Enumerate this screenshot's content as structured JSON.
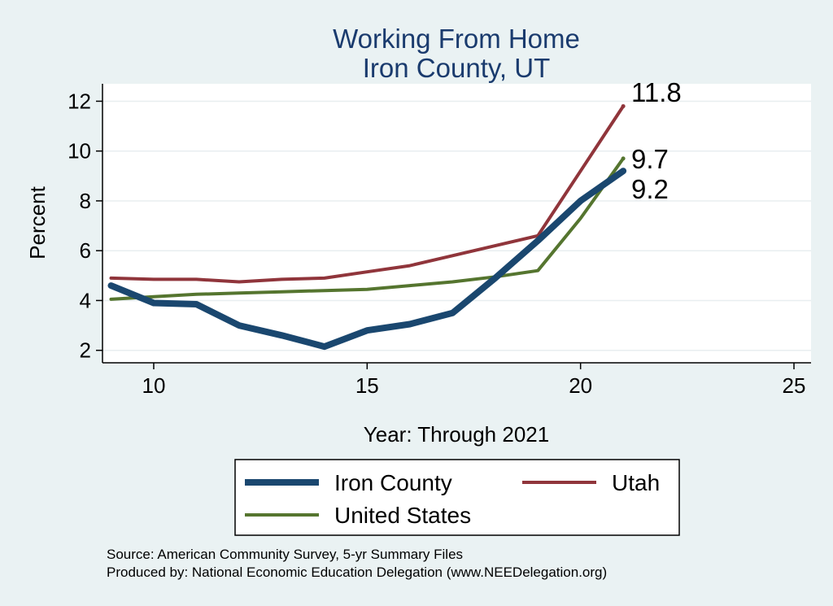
{
  "chart_data": {
    "type": "line",
    "title": "Working From Home",
    "subtitle": "Iron County, UT",
    "xlabel": "Year: Through 2021",
    "ylabel": "Percent",
    "xlim": [
      8.8,
      25.4
    ],
    "ylim": [
      1.5,
      12.7
    ],
    "xticks": [
      10,
      15,
      20,
      25
    ],
    "yticks": [
      2,
      4,
      6,
      8,
      10,
      12
    ],
    "grid": "horizontal",
    "legend_position": "bottom",
    "series": [
      {
        "name": "Iron County",
        "color": "#1a476f",
        "x": [
          9,
          10,
          11,
          12,
          13,
          14,
          15,
          16,
          17,
          18,
          19,
          20,
          21
        ],
        "y": [
          4.6,
          3.9,
          3.85,
          3.0,
          2.6,
          2.15,
          2.8,
          3.05,
          3.5,
          4.9,
          6.4,
          8.0,
          9.2
        ]
      },
      {
        "name": "Utah",
        "color": "#90353b",
        "x": [
          9,
          10,
          11,
          12,
          13,
          14,
          15,
          16,
          17,
          18,
          19,
          20,
          21
        ],
        "y": [
          4.9,
          4.85,
          4.85,
          4.75,
          4.85,
          4.9,
          5.15,
          5.4,
          5.8,
          6.2,
          6.6,
          9.2,
          11.8
        ]
      },
      {
        "name": "United States",
        "color": "#55752f",
        "x": [
          9,
          10,
          11,
          12,
          13,
          14,
          15,
          16,
          17,
          18,
          19,
          20,
          21
        ],
        "y": [
          4.05,
          4.15,
          4.25,
          4.3,
          4.35,
          4.4,
          4.45,
          4.6,
          4.75,
          4.95,
          5.2,
          7.3,
          9.7
        ]
      }
    ],
    "end_labels": [
      "11.8",
      "9.7",
      "9.2"
    ],
    "notes": [
      "Source: American Community Survey, 5-yr Summary Files",
      "Produced by: National Economic Education Delegation (www.NEEDelegation.org)"
    ]
  }
}
